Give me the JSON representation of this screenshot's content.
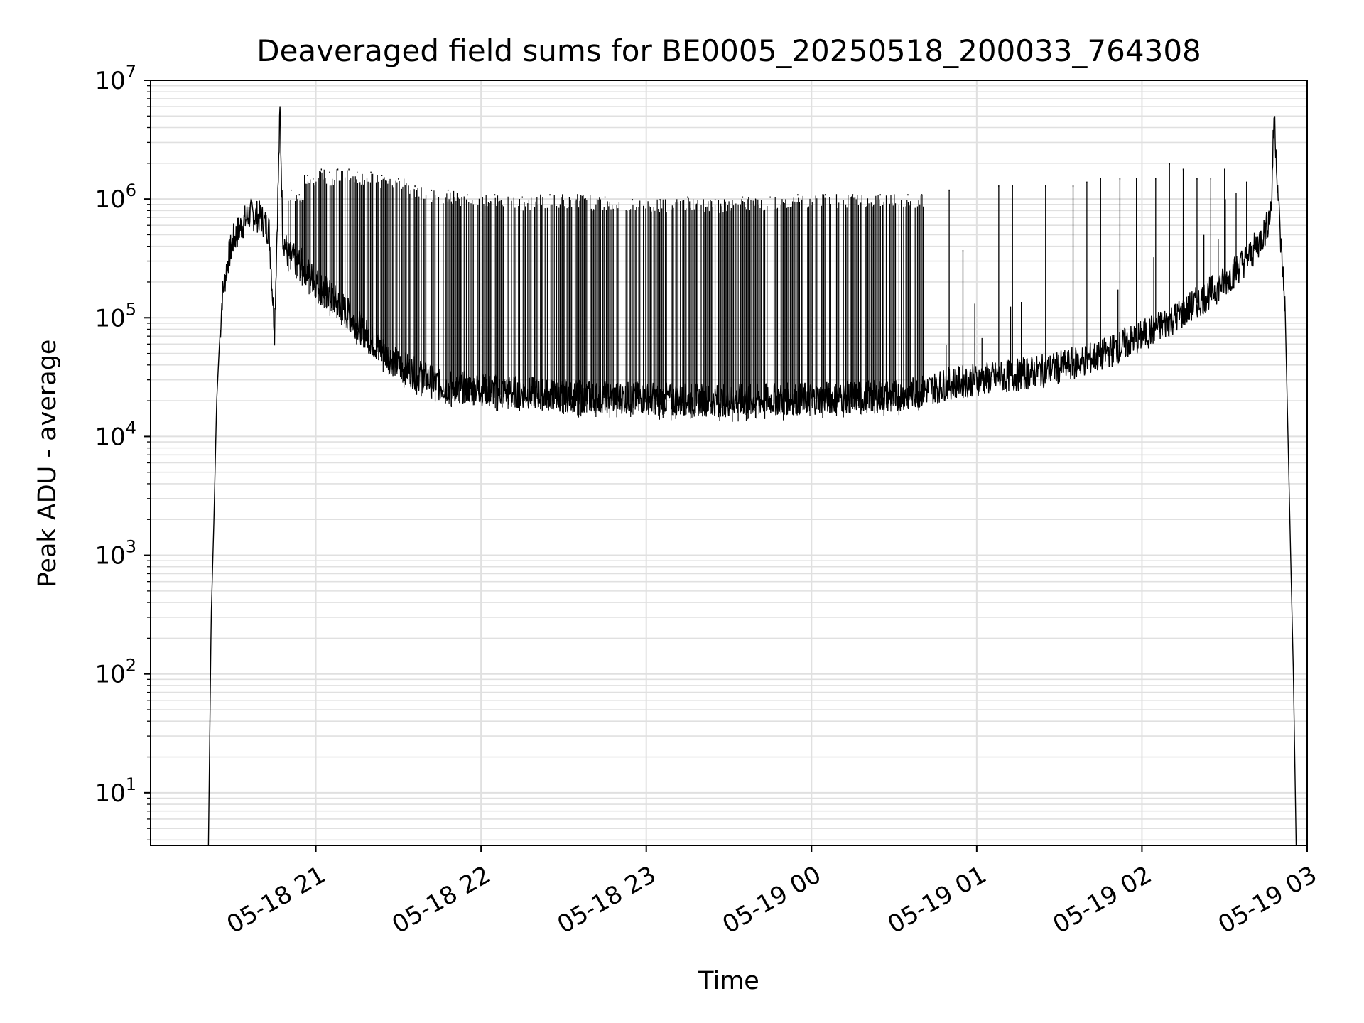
{
  "chart_data": {
    "type": "line",
    "title": "Deaveraged field sums for BE0005_20250518_200033_764308",
    "xlabel": "Time",
    "ylabel": "Peak ADU - average",
    "yscale": "log",
    "ylim": [
      3.6,
      10000000
    ],
    "xlim": [
      "05-18 20:00",
      "05-19 03:00"
    ],
    "grid": true,
    "line_color": "#000000",
    "grid_color": "#e0e0e0",
    "x_ticks": [
      "05-18 21",
      "05-18 22",
      "05-18 23",
      "05-19 00",
      "05-19 01",
      "05-19 02",
      "05-19 03"
    ],
    "y_ticks": [
      {
        "base": "10",
        "exp": "1",
        "value": 10
      },
      {
        "base": "10",
        "exp": "2",
        "value": 100
      },
      {
        "base": "10",
        "exp": "3",
        "value": 1000
      },
      {
        "base": "10",
        "exp": "4",
        "value": 10000
      },
      {
        "base": "10",
        "exp": "5",
        "value": 100000
      },
      {
        "base": "10",
        "exp": "6",
        "value": 1000000
      },
      {
        "base": "10",
        "exp": "7",
        "value": 10000000
      }
    ],
    "series": [
      {
        "x": [
          "05-18 20:21",
          "05-18 20:22",
          "05-18 20:23",
          "05-18 20:24",
          "05-18 20:25",
          "05-18 20:26",
          "05-18 20:28",
          "05-18 20:30",
          "05-18 20:33",
          "05-18 20:36",
          "05-18 20:40",
          "05-18 20:43",
          "05-18 20:45",
          "05-18 20:47",
          "05-18 20:48",
          "05-18 20:49",
          "05-18 20:50",
          "05-18 20:55",
          "05-18 21:00",
          "05-18 21:10",
          "05-18 21:20",
          "05-18 21:30",
          "05-18 21:45",
          "05-18 22:00",
          "05-18 22:30",
          "05-18 23:00",
          "05-18 23:30",
          "05-19 00:00",
          "05-19 00:30",
          "05-19 00:40",
          "05-19 00:50",
          "05-19 01:00",
          "05-19 01:15",
          "05-19 01:30",
          "05-19 01:45",
          "05-19 02:00",
          "05-19 02:15",
          "05-19 02:30",
          "05-19 02:40",
          "05-19 02:45",
          "05-19 02:47",
          "05-19 02:48",
          "05-19 02:50",
          "05-19 02:52",
          "05-19 02:54",
          "05-19 02:55",
          "05-19 02:56"
        ],
        "y": [
          3.6,
          300,
          2000,
          20000,
          60000,
          150000,
          300000,
          450000,
          600000,
          750000,
          700000,
          550000,
          80000,
          5500000,
          500000,
          400000,
          330000,
          280000,
          200000,
          120000,
          65000,
          40000,
          27000,
          25000,
          22000,
          21000,
          20000,
          21000,
          22000,
          24000,
          28000,
          30000,
          33000,
          38000,
          48000,
          70000,
          110000,
          200000,
          350000,
          550000,
          850000,
          5500000,
          600000,
          120000,
          1000,
          100,
          3.6
        ]
      }
    ],
    "spikes_peak": [
      {
        "x": "05-18 20:51",
        "y": 1200000
      },
      {
        "x": "05-18 20:54",
        "y": 1100000
      },
      {
        "x": "05-18 20:57",
        "y": 1600000
      },
      {
        "x": "05-18 20:59",
        "y": 1500000
      },
      {
        "x": "05-18 21:02",
        "y": 1800000
      },
      {
        "x": "05-18 21:05",
        "y": 1700000
      },
      {
        "x": "05-18 21:08",
        "y": 1800000
      },
      {
        "x": "05-18 21:12",
        "y": 1800000
      },
      {
        "x": "05-18 21:15",
        "y": 1700000
      },
      {
        "x": "05-18 21:20",
        "y": 1700000
      },
      {
        "x": "05-18 21:24",
        "y": 1600000
      },
      {
        "x": "05-18 21:30",
        "y": 1500000
      },
      {
        "x": "05-18 21:36",
        "y": 1300000
      },
      {
        "x": "05-18 21:42",
        "y": 1200000
      },
      {
        "x": "05-18 21:48",
        "y": 1200000
      },
      {
        "x": "05-18 21:55",
        "y": 1100000
      },
      {
        "x": "05-18 22:05",
        "y": 1100000
      },
      {
        "x": "05-18 22:15",
        "y": 1050000
      },
      {
        "x": "05-18 22:25",
        "y": 1100000
      },
      {
        "x": "05-18 22:35",
        "y": 1100000
      },
      {
        "x": "05-18 22:45",
        "y": 1050000
      },
      {
        "x": "05-18 22:55",
        "y": 1000000
      },
      {
        "x": "05-18 23:05",
        "y": 1000000
      },
      {
        "x": "05-18 23:15",
        "y": 1050000
      },
      {
        "x": "05-18 23:25",
        "y": 1000000
      },
      {
        "x": "05-18 23:35",
        "y": 1050000
      },
      {
        "x": "05-18 23:45",
        "y": 1050000
      },
      {
        "x": "05-18 23:55",
        "y": 1100000
      },
      {
        "x": "05-19 00:05",
        "y": 1100000
      },
      {
        "x": "05-19 00:15",
        "y": 1100000
      },
      {
        "x": "05-19 00:25",
        "y": 1100000
      },
      {
        "x": "05-19 00:35",
        "y": 1100000
      },
      {
        "x": "05-19 00:40",
        "y": 1100000
      },
      {
        "x": "05-19 00:50",
        "y": 1200000
      },
      {
        "x": "05-19 00:55",
        "y": 370000
      },
      {
        "x": "05-19 01:08",
        "y": 1300000
      },
      {
        "x": "05-19 01:13",
        "y": 1300000
      },
      {
        "x": "05-19 01:25",
        "y": 1300000
      },
      {
        "x": "05-19 01:35",
        "y": 1300000
      },
      {
        "x": "05-19 01:40",
        "y": 1400000
      },
      {
        "x": "05-19 01:45",
        "y": 1500000
      },
      {
        "x": "05-19 01:52",
        "y": 1500000
      },
      {
        "x": "05-19 01:58",
        "y": 1500000
      },
      {
        "x": "05-19 02:05",
        "y": 1500000
      },
      {
        "x": "05-19 02:10",
        "y": 2000000
      },
      {
        "x": "05-19 02:15",
        "y": 1800000
      },
      {
        "x": "05-19 02:20",
        "y": 1500000
      },
      {
        "x": "05-19 02:25",
        "y": 1500000
      },
      {
        "x": "05-19 02:30",
        "y": 1800000
      },
      {
        "x": "05-19 02:38",
        "y": 1400000
      }
    ]
  }
}
